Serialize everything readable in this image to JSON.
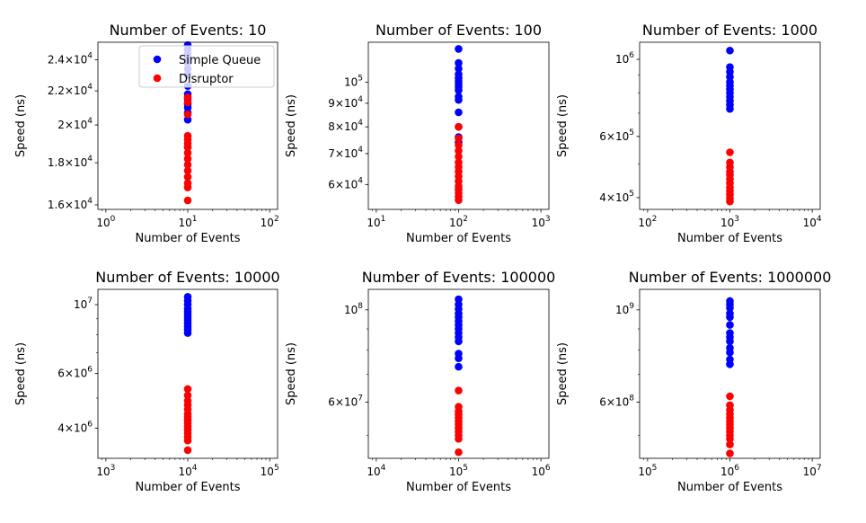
{
  "chart_data": [
    {
      "type": "scatter",
      "title": "Number of Events: 10",
      "xlabel": "Number of Events",
      "ylabel": "Speed (ns)",
      "xscale": "log",
      "yscale": "log",
      "xlim": [
        0.8,
        125
      ],
      "ylim": [
        15800,
        25200
      ],
      "xticks": [
        {
          "value": 1,
          "base": "10",
          "exp": "0"
        },
        {
          "value": 10,
          "base": "10",
          "exp": "1"
        },
        {
          "value": 100,
          "base": "10",
          "exp": "2"
        }
      ],
      "yticks": [
        {
          "value": 16000,
          "base": "1.6×10",
          "exp": "4"
        },
        {
          "value": 18000,
          "base": "1.8×10",
          "exp": "4"
        },
        {
          "value": 20000,
          "base": "2×10",
          "exp": "4"
        },
        {
          "value": 22000,
          "base": "2.2×10",
          "exp": "4"
        },
        {
          "value": 24000,
          "base": "2.4×10",
          "exp": "4"
        }
      ],
      "legend": {
        "position": "upper-right",
        "entries": [
          "Simple Queue",
          "Disruptor"
        ]
      },
      "series": [
        {
          "name": "Simple Queue",
          "color": "#0000ff",
          "x": 10,
          "values": [
            25000,
            24700,
            24400,
            24100,
            23800,
            23400,
            23000,
            22300,
            21800,
            21500,
            21200,
            21000,
            20700,
            20300,
            18800
          ]
        },
        {
          "name": "Disruptor",
          "color": "#ff0000",
          "x": 10,
          "values": [
            21600,
            21300,
            20600,
            19400,
            19200,
            19000,
            18800,
            18500,
            18200,
            17900,
            17600,
            17300,
            17000,
            16800,
            16200
          ]
        }
      ]
    },
    {
      "type": "scatter",
      "title": "Number of Events: 100",
      "xlabel": "Number of Events",
      "ylabel": "Speed (ns)",
      "xscale": "log",
      "yscale": "log",
      "xlim": [
        8,
        1250
      ],
      "ylim": [
        53000,
        122000
      ],
      "xticks": [
        {
          "value": 10,
          "base": "10",
          "exp": "1"
        },
        {
          "value": 100,
          "base": "10",
          "exp": "2"
        },
        {
          "value": 1000,
          "base": "10",
          "exp": "3"
        }
      ],
      "yticks": [
        {
          "value": 60000,
          "base": "6×10",
          "exp": "4"
        },
        {
          "value": 70000,
          "base": "7×10",
          "exp": "4"
        },
        {
          "value": 80000,
          "base": "8×10",
          "exp": "4"
        },
        {
          "value": 90000,
          "base": "9×10",
          "exp": "4"
        },
        {
          "value": 100000,
          "base": "10",
          "exp": "5"
        }
      ],
      "series": [
        {
          "name": "Simple Queue",
          "color": "#0000ff",
          "x": 100,
          "values": [
            118000,
            110000,
            107000,
            104000,
            102000,
            100500,
            99000,
            97500,
            96000,
            93000,
            91500,
            86000,
            80000,
            76000,
            74000
          ]
        },
        {
          "name": "Disruptor",
          "color": "#ff0000",
          "x": 100,
          "values": [
            80000,
            75500,
            73000,
            71000,
            69000,
            67000,
            65500,
            64000,
            62500,
            61000,
            59500,
            58500,
            57500,
            56500,
            55500
          ]
        }
      ]
    },
    {
      "type": "scatter",
      "title": "Number of Events: 1000",
      "xlabel": "Number of Events",
      "ylabel": "Speed (ns)",
      "xscale": "log",
      "yscale": "log",
      "xlim": [
        80,
        12500
      ],
      "ylim": [
        370000,
        1120000
      ],
      "xticks": [
        {
          "value": 100,
          "base": "10",
          "exp": "2"
        },
        {
          "value": 1000,
          "base": "10",
          "exp": "3"
        },
        {
          "value": 10000,
          "base": "10",
          "exp": "4"
        }
      ],
      "yticks": [
        {
          "value": 400000,
          "base": "4×10",
          "exp": "5"
        },
        {
          "value": 600000,
          "base": "6×10",
          "exp": "5"
        },
        {
          "value": 1000000,
          "base": "10",
          "exp": "6"
        }
      ],
      "series": [
        {
          "name": "Simple Queue",
          "color": "#0000ff",
          "x": 1000,
          "values": [
            1060000,
            950000,
            920000,
            890000,
            860000,
            840000,
            820000,
            800000,
            780000,
            760000,
            740000,
            720000
          ]
        },
        {
          "name": "Disruptor",
          "color": "#ff0000",
          "x": 1000,
          "values": [
            540000,
            505000,
            490000,
            475000,
            465000,
            452000,
            440000,
            428000,
            418000,
            408000,
            398000,
            390000
          ]
        }
      ]
    },
    {
      "type": "scatter",
      "title": "Number of Events: 10000",
      "xlabel": "Number of Events",
      "ylabel": "Speed (ns)",
      "xscale": "log",
      "yscale": "log",
      "xlim": [
        800,
        125000
      ],
      "ylim": [
        3200000,
        11200000
      ],
      "xticks": [
        {
          "value": 1000,
          "base": "10",
          "exp": "3"
        },
        {
          "value": 10000,
          "base": "10",
          "exp": "4"
        },
        {
          "value": 100000,
          "base": "10",
          "exp": "5"
        }
      ],
      "yticks": [
        {
          "value": 4000000,
          "base": "4×10",
          "exp": "6"
        },
        {
          "value": 6000000,
          "base": "6×10",
          "exp": "6"
        },
        {
          "value": 10000000,
          "base": "10",
          "exp": "7"
        }
      ],
      "series": [
        {
          "name": "Simple Queue",
          "color": "#0000ff",
          "x": 10000,
          "values": [
            10600000,
            10300000,
            10000000,
            9700000,
            9500000,
            9300000,
            9100000,
            8900000,
            8700000,
            8500000,
            8300000,
            8100000
          ]
        },
        {
          "name": "Disruptor",
          "color": "#ff0000",
          "x": 10000,
          "values": [
            5350000,
            5100000,
            4900000,
            4750000,
            4600000,
            4450000,
            4350000,
            4250000,
            4150000,
            4050000,
            3950000,
            3850000,
            3750000,
            3650000,
            3400000
          ]
        }
      ]
    },
    {
      "type": "scatter",
      "title": "Number of Events: 100000",
      "xlabel": "Number of Events",
      "ylabel": "Speed (ns)",
      "xscale": "log",
      "yscale": "log",
      "xlim": [
        8000,
        1250000
      ],
      "ylim": [
        44000000,
        112000000
      ],
      "xticks": [
        {
          "value": 10000,
          "base": "10",
          "exp": "4"
        },
        {
          "value": 100000,
          "base": "10",
          "exp": "5"
        },
        {
          "value": 1000000,
          "base": "10",
          "exp": "6"
        }
      ],
      "yticks": [
        {
          "value": 60000000,
          "base": "6×10",
          "exp": "7"
        },
        {
          "value": 100000000,
          "base": "10",
          "exp": "8"
        }
      ],
      "series": [
        {
          "name": "Simple Queue",
          "color": "#0000ff",
          "x": 100000,
          "values": [
            106000000,
            103000000,
            100500000,
            98000000,
            96000000,
            94000000,
            92000000,
            90000000,
            88000000,
            86000000,
            84000000,
            78500000,
            76500000,
            73000000
          ]
        },
        {
          "name": "Disruptor",
          "color": "#ff0000",
          "x": 100000,
          "values": [
            64000000,
            58500000,
            57000000,
            56000000,
            55000000,
            54000000,
            53000000,
            52000000,
            51000000,
            50000000,
            49000000,
            45500000
          ]
        }
      ]
    },
    {
      "type": "scatter",
      "title": "Number of Events: 1000000",
      "xlabel": "Number of Events",
      "ylabel": "Speed (ns)",
      "xscale": "log",
      "yscale": "log",
      "xlim": [
        80000,
        12500000
      ],
      "ylim": [
        440000000,
        1120000000
      ],
      "xticks": [
        {
          "value": 100000,
          "base": "10",
          "exp": "5"
        },
        {
          "value": 1000000,
          "base": "10",
          "exp": "6"
        },
        {
          "value": 10000000,
          "base": "10",
          "exp": "7"
        }
      ],
      "yticks": [
        {
          "value": 600000000,
          "base": "6×10",
          "exp": "8"
        },
        {
          "value": 1000000000,
          "base": "10",
          "exp": "9"
        }
      ],
      "series": [
        {
          "name": "Simple Queue",
          "color": "#0000ff",
          "x": 1000000,
          "values": [
            1050000000,
            1030000000,
            1010000000,
            980000000,
            960000000,
            920000000,
            880000000,
            860000000,
            840000000,
            810000000,
            790000000,
            760000000,
            740000000
          ]
        },
        {
          "name": "Disruptor",
          "color": "#ff0000",
          "x": 1000000,
          "values": [
            620000000,
            590000000,
            575000000,
            562000000,
            550000000,
            540000000,
            530000000,
            520000000,
            510000000,
            500000000,
            490000000,
            475000000,
            452000000
          ]
        }
      ]
    }
  ]
}
